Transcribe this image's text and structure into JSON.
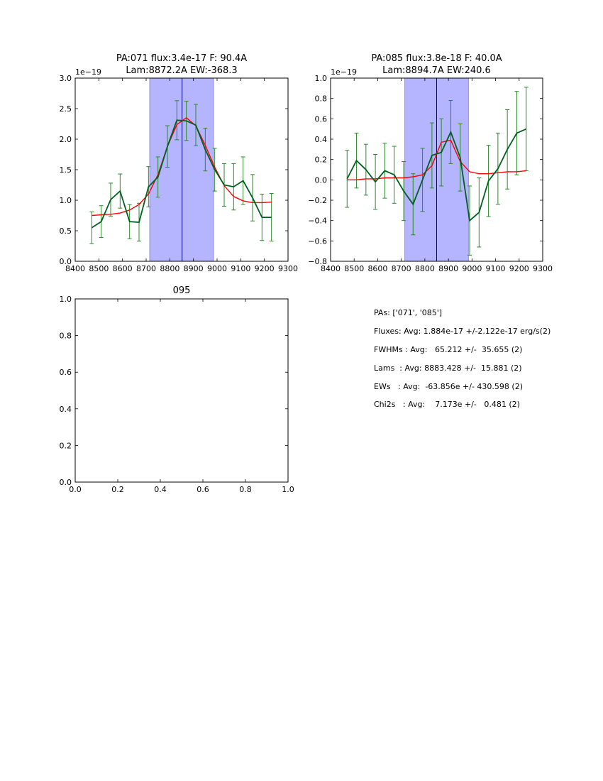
{
  "chart_data": [
    {
      "type": "line",
      "title_line1": "PA:071 flux:3.4e-17 F: 90.4A",
      "title_line2": "Lam:8872.2A EW:-368.3",
      "offset_label": "1e−19",
      "xlim": [
        8400,
        9300
      ],
      "ylim": [
        0.0,
        3.0
      ],
      "xticks": [
        8400,
        8500,
        8600,
        8700,
        8800,
        8900,
        9000,
        9100,
        9200,
        9300
      ],
      "yticks": [
        0.0,
        0.5,
        1.0,
        1.5,
        2.0,
        2.5,
        3.0
      ],
      "xtick_labels": [
        "8400",
        "8500",
        "8600",
        "8700",
        "8800",
        "8900",
        "9000",
        "9100",
        "9200",
        "9300"
      ],
      "ytick_labels": [
        "0.0",
        "0.5",
        "1.0",
        "1.5",
        "2.0",
        "2.5",
        "3.0"
      ],
      "shade": [
        8715,
        8985
      ],
      "vline": 8852,
      "series": [
        {
          "name": "data",
          "color": "#00601f",
          "x": [
            8470,
            8510,
            8550,
            8590,
            8630,
            8670,
            8710,
            8750,
            8790,
            8830,
            8870,
            8910,
            8950,
            8990,
            9030,
            9070,
            9110,
            9150,
            9190,
            9230
          ],
          "y": [
            0.55,
            0.65,
            1.01,
            1.15,
            0.65,
            0.64,
            1.22,
            1.38,
            1.88,
            2.31,
            2.3,
            2.23,
            1.83,
            1.5,
            1.25,
            1.22,
            1.32,
            1.04,
            0.72,
            0.72
          ],
          "err": [
            0.26,
            0.26,
            0.27,
            0.28,
            0.28,
            0.31,
            0.33,
            0.33,
            0.34,
            0.32,
            0.32,
            0.34,
            0.35,
            0.35,
            0.35,
            0.38,
            0.39,
            0.38,
            0.38,
            0.39
          ]
        },
        {
          "name": "fit",
          "color": "#ff0000",
          "x": [
            8470,
            8510,
            8550,
            8590,
            8630,
            8670,
            8710,
            8750,
            8790,
            8830,
            8870,
            8910,
            8950,
            8990,
            9030,
            9070,
            9110,
            9150,
            9190,
            9230
          ],
          "y": [
            0.75,
            0.76,
            0.77,
            0.79,
            0.84,
            0.93,
            1.1,
            1.42,
            1.88,
            2.24,
            2.35,
            2.22,
            1.9,
            1.54,
            1.24,
            1.06,
            0.99,
            0.96,
            0.96,
            0.97
          ]
        }
      ]
    },
    {
      "type": "line",
      "title_line1": "PA:085 flux:3.8e-18 F: 40.0A",
      "title_line2": "Lam:8894.7A EW:240.6",
      "offset_label": "1e−19",
      "xlim": [
        8400,
        9300
      ],
      "ylim": [
        -0.8,
        1.0
      ],
      "xticks": [
        8400,
        8500,
        8600,
        8700,
        8800,
        8900,
        9000,
        9100,
        9200,
        9300
      ],
      "yticks": [
        -0.8,
        -0.6,
        -0.4,
        -0.2,
        0.0,
        0.2,
        0.4,
        0.6,
        0.8,
        1.0
      ],
      "xtick_labels": [
        "8400",
        "8500",
        "8600",
        "8700",
        "8800",
        "8900",
        "9000",
        "9100",
        "9200",
        "9300"
      ],
      "ytick_labels": [
        "−0.8",
        "−0.6",
        "−0.4",
        "−0.2",
        "0.0",
        "0.2",
        "0.4",
        "0.6",
        "0.8",
        "1.0"
      ],
      "shade": [
        8715,
        8985
      ],
      "vline": 8850,
      "series": [
        {
          "name": "data",
          "color": "#00601f",
          "x": [
            8470,
            8510,
            8550,
            8590,
            8630,
            8670,
            8710,
            8750,
            8790,
            8830,
            8870,
            8910,
            8950,
            8990,
            9030,
            9070,
            9110,
            9150,
            9190,
            9230
          ],
          "y": [
            0.01,
            0.19,
            0.1,
            -0.02,
            0.09,
            0.05,
            -0.11,
            -0.24,
            0.0,
            0.24,
            0.27,
            0.47,
            0.22,
            -0.4,
            -0.32,
            -0.01,
            0.11,
            0.3,
            0.46,
            0.5
          ],
          "err": [
            0.28,
            0.27,
            0.25,
            0.27,
            0.27,
            0.28,
            0.29,
            0.3,
            0.31,
            0.32,
            0.33,
            0.31,
            0.33,
            0.34,
            0.34,
            0.35,
            0.35,
            0.39,
            0.41,
            0.41
          ]
        },
        {
          "name": "fit",
          "color": "#ff0000",
          "x": [
            8470,
            8510,
            8550,
            8590,
            8630,
            8670,
            8710,
            8750,
            8790,
            8830,
            8870,
            8910,
            8950,
            8990,
            9030,
            9070,
            9110,
            9150,
            9190,
            9230
          ],
          "y": [
            0.0,
            0.0,
            0.01,
            0.01,
            0.02,
            0.02,
            0.02,
            0.03,
            0.05,
            0.14,
            0.37,
            0.39,
            0.18,
            0.08,
            0.06,
            0.06,
            0.07,
            0.08,
            0.08,
            0.09
          ]
        }
      ]
    },
    {
      "type": "line",
      "title_line1": "095",
      "title_line2": "",
      "offset_label": "",
      "xlim": [
        0.0,
        1.0
      ],
      "ylim": [
        0.0,
        1.0
      ],
      "xticks": [
        0.0,
        0.2,
        0.4,
        0.6,
        0.8,
        1.0
      ],
      "yticks": [
        0.0,
        0.2,
        0.4,
        0.6,
        0.8,
        1.0
      ],
      "xtick_labels": [
        "0.0",
        "0.2",
        "0.4",
        "0.6",
        "0.8",
        "1.0"
      ],
      "ytick_labels": [
        "0.0",
        "0.2",
        "0.4",
        "0.6",
        "0.8",
        "1.0"
      ],
      "series": []
    }
  ],
  "colors": {
    "shade_fill": "#b4b4ff",
    "shade_edge": "#7f7fbf",
    "vline": "#00008b"
  },
  "stats": {
    "pas": "PAs: ['071', '085']",
    "fluxes": "Fluxes: Avg: 1.884e-17 +/-2.122e-17 erg/s(2)",
    "fwhms": "FWHMs : Avg:   65.212 +/-  35.655 (2)",
    "lams": "Lams  : Avg: 8883.428 +/-  15.881 (2)",
    "ews": "EWs   : Avg:  -63.856e +/- 430.598 (2)",
    "chi2s": "Chi2s   : Avg:    7.173e +/-   0.481 (2)"
  }
}
